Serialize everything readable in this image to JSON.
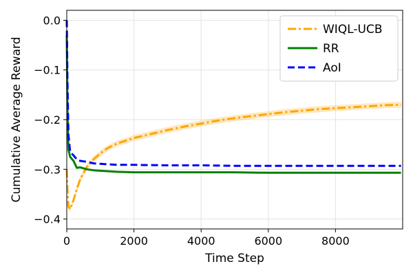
{
  "chart_data": {
    "type": "line",
    "title": "",
    "xlabel": "Time Step",
    "ylabel": "Cumulative Average Reward",
    "xlim": [
      0,
      10000
    ],
    "ylim": [
      -0.42,
      0.02
    ],
    "xticks": [
      0,
      2000,
      4000,
      6000,
      8000
    ],
    "xtick_labels": [
      "0",
      "2000",
      "4000",
      "6000",
      "8000"
    ],
    "yticks": [
      0.0,
      -0.1,
      -0.2,
      -0.3,
      -0.4
    ],
    "ytick_labels": [
      "0.0",
      "−0.1",
      "−0.2",
      "−0.3",
      "−0.4"
    ],
    "grid": true,
    "legend_position": "top-right",
    "series": [
      {
        "name": "WIQL-UCB",
        "color": "#ffa500",
        "style": "dash-dot",
        "band": true,
        "x": [
          0,
          20,
          50,
          100,
          200,
          300,
          400,
          600,
          800,
          1000,
          1200,
          1500,
          2000,
          2500,
          3000,
          3500,
          4000,
          4500,
          5000,
          5500,
          6000,
          6500,
          7000,
          7500,
          8000,
          8500,
          9000,
          9500,
          9950
        ],
        "y": [
          -0.3,
          -0.34,
          -0.375,
          -0.38,
          -0.362,
          -0.34,
          -0.32,
          -0.295,
          -0.28,
          -0.268,
          -0.258,
          -0.248,
          -0.237,
          -0.229,
          -0.221,
          -0.214,
          -0.208,
          -0.202,
          -0.197,
          -0.193,
          -0.189,
          -0.185,
          -0.182,
          -0.179,
          -0.177,
          -0.175,
          -0.173,
          -0.171,
          -0.17
        ]
      },
      {
        "name": "RR",
        "color": "#008000",
        "style": "solid",
        "x": [
          0,
          20,
          50,
          100,
          200,
          300,
          400,
          600,
          800,
          1000,
          1500,
          2000,
          3000,
          4000,
          5000,
          6000,
          7000,
          8000,
          9000,
          9950
        ],
        "y": [
          -0.03,
          -0.18,
          -0.26,
          -0.275,
          -0.283,
          -0.297,
          -0.296,
          -0.3,
          -0.302,
          -0.303,
          -0.305,
          -0.306,
          -0.306,
          -0.306,
          -0.306,
          -0.307,
          -0.307,
          -0.307,
          -0.307,
          -0.307
        ]
      },
      {
        "name": "AoI",
        "color": "#0000ff",
        "style": "dashed",
        "x": [
          0,
          20,
          50,
          100,
          200,
          300,
          400,
          600,
          800,
          1000,
          1500,
          2000,
          3000,
          4000,
          5000,
          6000,
          7000,
          8000,
          9000,
          9950
        ],
        "y": [
          0.0,
          -0.12,
          -0.23,
          -0.265,
          -0.272,
          -0.28,
          -0.283,
          -0.285,
          -0.288,
          -0.289,
          -0.291,
          -0.291,
          -0.292,
          -0.292,
          -0.293,
          -0.293,
          -0.293,
          -0.293,
          -0.293,
          -0.293
        ]
      }
    ]
  }
}
